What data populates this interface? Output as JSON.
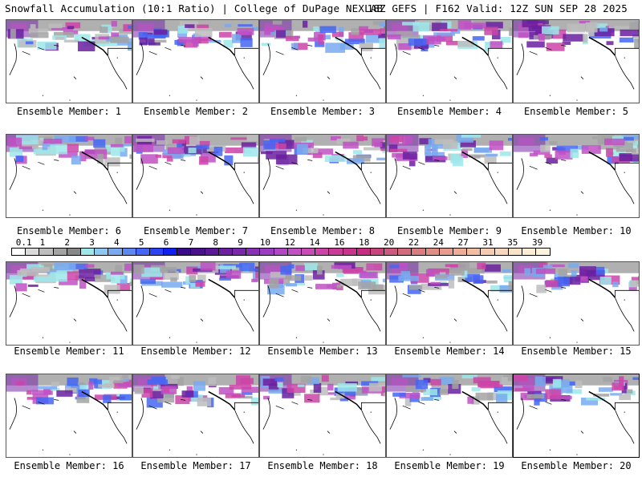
{
  "header": {
    "left_title": "Snowfall Accumulation (10:1 Ratio) | College of DuPage NEXLAB",
    "right_title": "18Z GEFS | F162 Valid: 12Z SUN SEP 28 2025"
  },
  "panels": [
    {
      "label": "Ensemble Member: 1"
    },
    {
      "label": "Ensemble Member: 2"
    },
    {
      "label": "Ensemble Member: 3"
    },
    {
      "label": "Ensemble Member: 4"
    },
    {
      "label": "Ensemble Member: 5"
    },
    {
      "label": "Ensemble Member: 6"
    },
    {
      "label": "Ensemble Member: 7"
    },
    {
      "label": "Ensemble Member: 8"
    },
    {
      "label": "Ensemble Member: 9"
    },
    {
      "label": "Ensemble Member: 10"
    },
    {
      "label": "Ensemble Member: 11"
    },
    {
      "label": "Ensemble Member: 12"
    },
    {
      "label": "Ensemble Member: 13"
    },
    {
      "label": "Ensemble Member: 14"
    },
    {
      "label": "Ensemble Member: 15"
    },
    {
      "label": "Ensemble Member: 16"
    },
    {
      "label": "Ensemble Member: 17"
    },
    {
      "label": "Ensemble Member: 18"
    },
    {
      "label": "Ensemble Member: 19"
    },
    {
      "label": "Ensemble Member: 20"
    }
  ],
  "colorbar": {
    "labels": [
      "0.1",
      "1",
      "2",
      "3",
      "4",
      "5",
      "6",
      "7",
      "8",
      "9",
      "10",
      "12",
      "14",
      "16",
      "18",
      "20",
      "22",
      "24",
      "27",
      "31",
      "35",
      "39"
    ],
    "colors": [
      "#ffffff",
      "#d9d9d9",
      "#bdbdbd",
      "#a3a3a3",
      "#888888",
      "#9ee8ea",
      "#8cc8f0",
      "#78aaf0",
      "#5d88f0",
      "#4466f5",
      "#2a44f5",
      "#1020f0",
      "#3a0a8c",
      "#4a108c",
      "#5a1896",
      "#6a20a0",
      "#7828a8",
      "#8a30b4",
      "#9c3cc0",
      "#b048c6",
      "#c050c4",
      "#c84cb8",
      "#cc44a8",
      "#c83c98",
      "#c8348c",
      "#c82c80",
      "#c8447c",
      "#cc5a80",
      "#d06a7c",
      "#d87c80",
      "#e08e84",
      "#e89c8c",
      "#eeae96",
      "#f2bea2",
      "#f6ccb0",
      "#f8d8bc",
      "#fae4c8",
      "#fcedd4",
      "#fef4de"
    ]
  }
}
